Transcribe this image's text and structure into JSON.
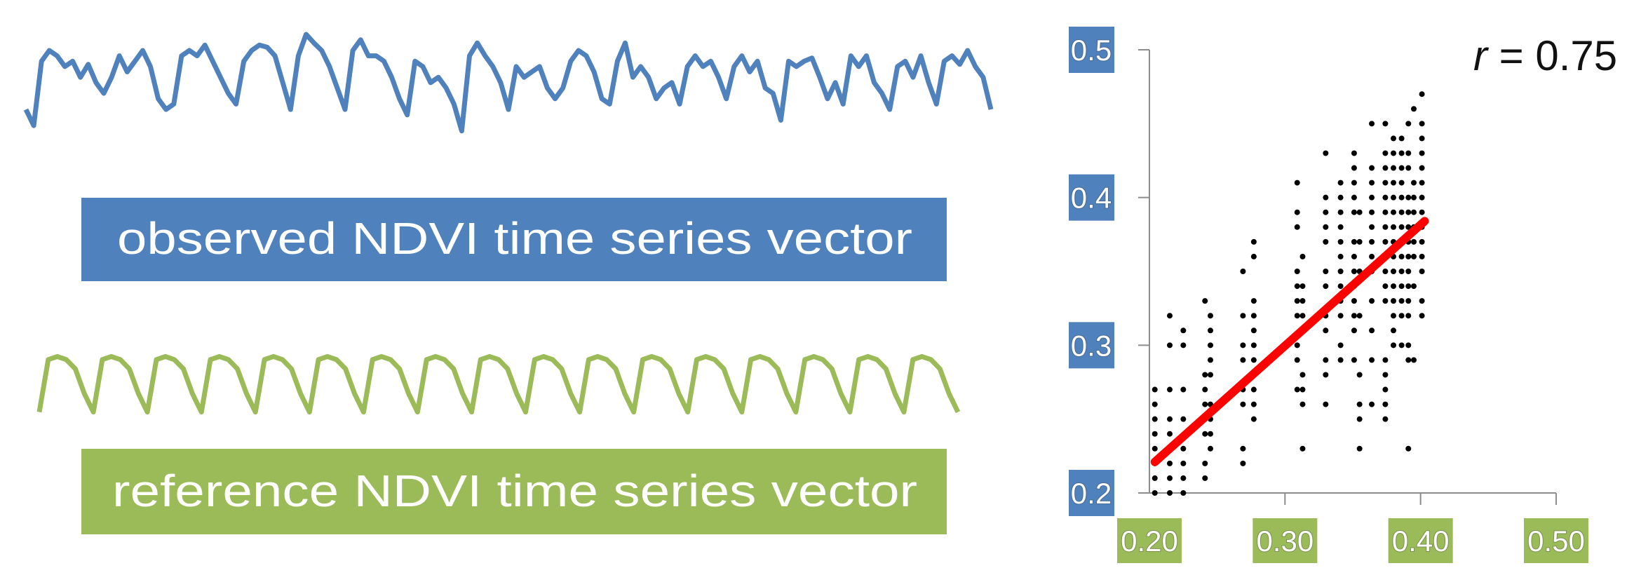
{
  "colors": {
    "observed": "#4f81bd",
    "reference": "#9bbb59",
    "fit_line": "#ff0000",
    "points": "#000000",
    "axis": "#8c8c8c"
  },
  "labels": {
    "observed": "observed NDVI time series vector",
    "reference": "reference NDVI time series vector"
  },
  "observed_series": [
    0.3,
    0.15,
    0.75,
    0.85,
    0.8,
    0.7,
    0.75,
    0.6,
    0.72,
    0.55,
    0.45,
    0.6,
    0.8,
    0.65,
    0.75,
    0.85,
    0.7,
    0.4,
    0.3,
    0.35,
    0.8,
    0.85,
    0.8,
    0.9,
    0.75,
    0.6,
    0.45,
    0.35,
    0.75,
    0.85,
    0.9,
    0.88,
    0.8,
    0.55,
    0.3,
    0.8,
    1.0,
    0.92,
    0.85,
    0.7,
    0.5,
    0.3,
    0.85,
    0.95,
    0.8,
    0.8,
    0.75,
    0.6,
    0.4,
    0.25,
    0.75,
    0.7,
    0.55,
    0.6,
    0.5,
    0.35,
    0.1,
    0.8,
    0.92,
    0.8,
    0.7,
    0.55,
    0.3,
    0.7,
    0.6,
    0.65,
    0.7,
    0.5,
    0.4,
    0.5,
    0.75,
    0.85,
    0.8,
    0.65,
    0.4,
    0.35,
    0.75,
    0.92,
    0.6,
    0.7,
    0.6,
    0.4,
    0.5,
    0.55,
    0.35,
    0.7,
    0.8,
    0.7,
    0.75,
    0.6,
    0.4,
    0.7,
    0.8,
    0.65,
    0.75,
    0.5,
    0.45,
    0.2,
    0.75,
    0.7,
    0.75,
    0.78,
    0.6,
    0.4,
    0.55,
    0.35,
    0.8,
    0.7,
    0.8,
    0.55,
    0.45,
    0.3,
    0.7,
    0.75,
    0.6,
    0.8,
    0.55,
    0.35,
    0.75,
    0.8,
    0.72,
    0.85,
    0.7,
    0.6,
    0.3
  ],
  "reference_series": [
    0.05,
    0.9,
    0.95,
    0.9,
    0.75,
    0.35,
    0.05,
    0.9,
    0.95,
    0.9,
    0.75,
    0.35,
    0.05,
    0.9,
    0.95,
    0.9,
    0.75,
    0.35,
    0.05,
    0.9,
    0.95,
    0.9,
    0.75,
    0.35,
    0.05,
    0.9,
    0.95,
    0.9,
    0.75,
    0.35,
    0.05,
    0.9,
    0.95,
    0.9,
    0.75,
    0.35,
    0.05,
    0.9,
    0.95,
    0.9,
    0.75,
    0.35,
    0.05,
    0.9,
    0.95,
    0.9,
    0.75,
    0.35,
    0.05,
    0.9,
    0.95,
    0.9,
    0.75,
    0.35,
    0.05,
    0.9,
    0.95,
    0.9,
    0.75,
    0.35,
    0.05,
    0.9,
    0.95,
    0.9,
    0.75,
    0.35,
    0.05,
    0.9,
    0.95,
    0.9,
    0.75,
    0.35,
    0.05,
    0.9,
    0.95,
    0.9,
    0.75,
    0.35,
    0.05,
    0.9,
    0.95,
    0.9,
    0.75,
    0.35,
    0.05,
    0.9,
    0.95,
    0.9,
    0.75,
    0.35,
    0.05,
    0.9,
    0.95,
    0.9,
    0.75,
    0.35,
    0.05,
    0.9,
    0.95,
    0.9,
    0.75,
    0.35,
    0.05
  ],
  "chart_data": {
    "type": "scatter",
    "annotation": "r = 0.75",
    "annotation_var": "r",
    "annotation_rest": " = 0.75",
    "xlim": [
      0.2,
      0.5
    ],
    "ylim": [
      0.2,
      0.5
    ],
    "xticks": [
      "0.20",
      "0.30",
      "0.40",
      "0.50"
    ],
    "yticks": [
      "0.5",
      "0.4",
      "0.3",
      "0.2"
    ],
    "grid": false,
    "fit_line": {
      "x": [
        0.204,
        0.403
      ],
      "y": [
        0.221,
        0.384
      ]
    },
    "columns": [
      {
        "x": 0.204,
        "y": [
          0.2,
          0.21,
          0.22,
          0.23,
          0.24,
          0.25,
          0.26,
          0.27
        ]
      },
      {
        "x": 0.215,
        "y": [
          0.2,
          0.21,
          0.22,
          0.24,
          0.25,
          0.27,
          0.3,
          0.32
        ]
      },
      {
        "x": 0.225,
        "y": [
          0.2,
          0.21,
          0.22,
          0.23,
          0.25,
          0.27,
          0.3,
          0.31
        ]
      },
      {
        "x": 0.241,
        "y": [
          0.21,
          0.22,
          0.24,
          0.26,
          0.27,
          0.28,
          0.33
        ]
      },
      {
        "x": 0.245,
        "y": [
          0.23,
          0.24,
          0.25,
          0.26,
          0.28,
          0.29,
          0.3,
          0.31,
          0.32
        ]
      },
      {
        "x": 0.269,
        "y": [
          0.22,
          0.23,
          0.26,
          0.27,
          0.29,
          0.3,
          0.32,
          0.35
        ]
      },
      {
        "x": 0.277,
        "y": [
          0.25,
          0.26,
          0.27,
          0.29,
          0.3,
          0.31,
          0.32,
          0.33,
          0.36,
          0.37
        ]
      },
      {
        "x": 0.309,
        "y": [
          0.27,
          0.29,
          0.3,
          0.32,
          0.33,
          0.34,
          0.35,
          0.38,
          0.39,
          0.41
        ]
      },
      {
        "x": 0.313,
        "y": [
          0.23,
          0.26,
          0.27,
          0.28,
          0.32,
          0.33,
          0.34,
          0.36
        ]
      },
      {
        "x": 0.33,
        "y": [
          0.26,
          0.28,
          0.29,
          0.31,
          0.32,
          0.34,
          0.35,
          0.37,
          0.38,
          0.39,
          0.4,
          0.43
        ]
      },
      {
        "x": 0.341,
        "y": [
          0.29,
          0.3,
          0.32,
          0.33,
          0.34,
          0.35,
          0.36,
          0.37,
          0.38,
          0.39,
          0.4,
          0.41
        ]
      },
      {
        "x": 0.351,
        "y": [
          0.29,
          0.31,
          0.32,
          0.33,
          0.34,
          0.35,
          0.36,
          0.37,
          0.39,
          0.4,
          0.41,
          0.42,
          0.43
        ]
      },
      {
        "x": 0.355,
        "y": [
          0.23,
          0.25,
          0.26,
          0.28,
          0.32,
          0.35,
          0.37,
          0.39
        ]
      },
      {
        "x": 0.364,
        "y": [
          0.26,
          0.29,
          0.31,
          0.33,
          0.35,
          0.36,
          0.37,
          0.38,
          0.39,
          0.4,
          0.41,
          0.42,
          0.45
        ]
      },
      {
        "x": 0.374,
        "y": [
          0.25,
          0.26,
          0.27,
          0.28,
          0.29,
          0.33,
          0.34,
          0.35,
          0.36,
          0.37,
          0.38,
          0.39,
          0.4,
          0.41,
          0.42,
          0.43,
          0.45
        ]
      },
      {
        "x": 0.38,
        "y": [
          0.3,
          0.31,
          0.32,
          0.33,
          0.34,
          0.35,
          0.36,
          0.37,
          0.38,
          0.39,
          0.4,
          0.41,
          0.42,
          0.43,
          0.44
        ]
      },
      {
        "x": 0.386,
        "y": [
          0.3,
          0.32,
          0.33,
          0.34,
          0.35,
          0.36,
          0.37,
          0.38,
          0.39,
          0.4,
          0.41,
          0.42,
          0.43,
          0.44
        ]
      },
      {
        "x": 0.391,
        "y": [
          0.23,
          0.29,
          0.3,
          0.32,
          0.33,
          0.34,
          0.35,
          0.36,
          0.37,
          0.38,
          0.39,
          0.4,
          0.42,
          0.43,
          0.45
        ]
      },
      {
        "x": 0.395,
        "y": [
          0.29,
          0.34,
          0.36,
          0.37,
          0.38,
          0.39,
          0.4,
          0.41,
          0.46
        ]
      },
      {
        "x": 0.401,
        "y": [
          0.32,
          0.33,
          0.35,
          0.36,
          0.37,
          0.38,
          0.39,
          0.4,
          0.41,
          0.42,
          0.43,
          0.44,
          0.45,
          0.47
        ]
      }
    ]
  }
}
